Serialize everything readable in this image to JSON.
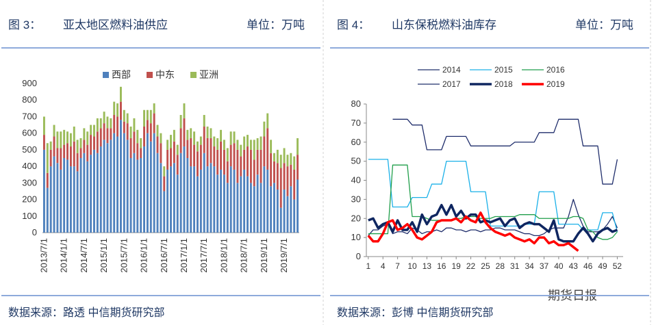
{
  "watermark": "期货日报",
  "chart_data": [
    {
      "type": "bar",
      "stacked": true,
      "figure": "图 3：",
      "title": "亚太地区燃料油供应",
      "unit": "单位：万吨",
      "source": "数据来源：路透  中信期货研究部",
      "categories": [
        "2013/7/1",
        null,
        null,
        null,
        null,
        null,
        "2014/1/1",
        null,
        null,
        null,
        null,
        null,
        "2014/7/1",
        null,
        null,
        null,
        null,
        null,
        "2015/1/1",
        null,
        null,
        null,
        null,
        null,
        "2015/7/1",
        null,
        null,
        null,
        null,
        null,
        "2016/1/1",
        null,
        null,
        null,
        null,
        null,
        "2016/7/1",
        null,
        null,
        null,
        null,
        null,
        "2017/1/1",
        null,
        null,
        null,
        null,
        null,
        "2017/7/1",
        null,
        null,
        null,
        null,
        null,
        "2018/1/1",
        null,
        null,
        null,
        null,
        null,
        "2018/7/1",
        null,
        null,
        null,
        null,
        null,
        "2019/1/1",
        null,
        null,
        null,
        null,
        null,
        "2019/7/1",
        null,
        null,
        null,
        null
      ],
      "series": [
        {
          "name": "西部",
          "color": "#4f81bd",
          "values": [
            500,
            270,
            400,
            460,
            420,
            380,
            450,
            440,
            400,
            400,
            370,
            450,
            480,
            430,
            470,
            500,
            480,
            520,
            560,
            540,
            560,
            600,
            580,
            680,
            600,
            560,
            450,
            480,
            440,
            450,
            520,
            600,
            550,
            600,
            480,
            420,
            250,
            380,
            400,
            420,
            350,
            480,
            520,
            450,
            400,
            400,
            340,
            380,
            480,
            400,
            420,
            400,
            350,
            380,
            350,
            300,
            400,
            380,
            300,
            340,
            380,
            340,
            300,
            280,
            350,
            300,
            400,
            380,
            280,
            300,
            260,
            150,
            260,
            220,
            280,
            200,
            320
          ]
        },
        {
          "name": "中东",
          "color": "#c0504d",
          "values": [
            90,
            90,
            100,
            120,
            90,
            130,
            80,
            100,
            120,
            150,
            110,
            60,
            80,
            100,
            120,
            80,
            130,
            110,
            100,
            90,
            70,
            110,
            120,
            110,
            70,
            100,
            120,
            130,
            100,
            60,
            120,
            80,
            110,
            120,
            100,
            120,
            90,
            120,
            110,
            130,
            120,
            150,
            170,
            110,
            170,
            130,
            150,
            150,
            160,
            170,
            150,
            120,
            150,
            170,
            150,
            130,
            130,
            160,
            200,
            120,
            120,
            180,
            200,
            160,
            150,
            200,
            180,
            250,
            200,
            130,
            160,
            240,
            160,
            180,
            130,
            180,
            150
          ]
        },
        {
          "name": "亚洲",
          "color": "#9bbb59",
          "values": [
            110,
            180,
            50,
            70,
            100,
            100,
            90,
            70,
            80,
            90,
            80,
            60,
            70,
            80,
            60,
            70,
            80,
            60,
            70,
            70,
            60,
            80,
            80,
            90,
            70,
            60,
            70,
            80,
            80,
            60,
            100,
            60,
            80,
            60,
            70,
            60,
            60,
            60,
            80,
            70,
            60,
            80,
            90,
            60,
            60,
            80,
            60,
            50,
            70,
            70,
            60,
            60,
            70,
            70,
            60,
            80,
            80,
            70,
            60,
            70,
            80,
            70,
            60,
            120,
            70,
            80,
            90,
            90,
            80,
            50,
            80,
            80,
            90,
            70,
            70,
            80,
            100
          ]
        }
      ],
      "ylim": [
        0,
        900
      ],
      "yticks": [
        0,
        100,
        200,
        300,
        400,
        500,
        600,
        700,
        800,
        900
      ]
    },
    {
      "type": "line",
      "figure": "图 4：",
      "title": "山东保税燃料油库存",
      "unit": "单位：万吨",
      "source": "数据来源：彭博  中信期货研究部",
      "x": [
        1,
        2,
        3,
        4,
        5,
        6,
        7,
        8,
        9,
        10,
        11,
        12,
        13,
        14,
        15,
        16,
        17,
        18,
        19,
        20,
        21,
        22,
        23,
        24,
        25,
        26,
        27,
        28,
        29,
        30,
        31,
        32,
        33,
        34,
        35,
        36,
        37,
        38,
        39,
        40,
        41,
        42,
        43,
        44,
        45,
        46,
        47,
        48,
        49,
        50,
        51,
        52
      ],
      "series": [
        {
          "name": "2014",
          "color": "#1f2d6b",
          "width": 1.3,
          "values": [
            11,
            14,
            14,
            16,
            17,
            12,
            13,
            13,
            12,
            15,
            14,
            12,
            13,
            13,
            14,
            13,
            15,
            15,
            14,
            14,
            13,
            14,
            14,
            13,
            14,
            14,
            15,
            15,
            14,
            14,
            14,
            13,
            12,
            12,
            11,
            11,
            12,
            14,
            15,
            15,
            15,
            21,
            30,
            22,
            16,
            13,
            13,
            13,
            14,
            17,
            21,
            15
          ]
        },
        {
          "name": "2015",
          "color": "#1ab0e8",
          "width": 1.3,
          "values": [
            51,
            51,
            51,
            51,
            51,
            26,
            26,
            26,
            26,
            31,
            31,
            31,
            31,
            38,
            38,
            38,
            50,
            50,
            50,
            50,
            50,
            34,
            34,
            34,
            34,
            16,
            16,
            16,
            16,
            16,
            16,
            16,
            17,
            17,
            17,
            34,
            34,
            34,
            34,
            17,
            17,
            17,
            17,
            17,
            14,
            14,
            14,
            14,
            23,
            23,
            23,
            13
          ]
        },
        {
          "name": "2016",
          "color": "#1f9e4a",
          "width": 1.3,
          "values": [
            12,
            12,
            12,
            12,
            12,
            48,
            48,
            48,
            48,
            21,
            21,
            21,
            20,
            19,
            19,
            19,
            19,
            19,
            20,
            20,
            21,
            21,
            21,
            20,
            20,
            20,
            21,
            21,
            21,
            21,
            21,
            22,
            22,
            22,
            22,
            20,
            20,
            20,
            20,
            20,
            20,
            20,
            21,
            21,
            20,
            14,
            13,
            10,
            9,
            9,
            10,
            13
          ]
        },
        {
          "name": "2017",
          "color": "#1f2d6b",
          "width": 1.3,
          "values": [
            null,
            null,
            null,
            null,
            null,
            72,
            72,
            72,
            72,
            69,
            69,
            69,
            56,
            56,
            56,
            56,
            63,
            63,
            63,
            63,
            63,
            58,
            58,
            58,
            58,
            58,
            58,
            58,
            58,
            58,
            60,
            60,
            60,
            60,
            60,
            65,
            65,
            65,
            65,
            72,
            72,
            72,
            72,
            72,
            58,
            58,
            58,
            58,
            38,
            38,
            38,
            51
          ]
        },
        {
          "name": "2018",
          "color": "#0f2660",
          "width": 3.5,
          "values": [
            19,
            20,
            15,
            17,
            18,
            13,
            19,
            14,
            14,
            18,
            13,
            22,
            17,
            21,
            22,
            27,
            22,
            27,
            21,
            24,
            20,
            22,
            22,
            18,
            19,
            18,
            19,
            20,
            16,
            19,
            20,
            15,
            17,
            18,
            17,
            17,
            15,
            13,
            19,
            9,
            8,
            8,
            8,
            12,
            15,
            12,
            8,
            12,
            14,
            15,
            13,
            14
          ]
        },
        {
          "name": "2019",
          "color": "#ff0000",
          "width": 3.5,
          "values": [
            11,
            8,
            8,
            12,
            18,
            19,
            14,
            15,
            17,
            14,
            10,
            9,
            11,
            13,
            18,
            19,
            19,
            19,
            20,
            18,
            21,
            19,
            18,
            23,
            18,
            15,
            13,
            12,
            11,
            12,
            10,
            9,
            8,
            9,
            7,
            10,
            10,
            7,
            8,
            6,
            6,
            7,
            5,
            3,
            null,
            null,
            null,
            null,
            null,
            null,
            null,
            null
          ]
        }
      ],
      "xlim": [
        0.6,
        53.2
      ],
      "xticks": [
        1,
        4,
        7,
        10,
        13,
        16,
        19,
        22,
        25,
        28,
        31,
        34,
        37,
        40,
        43,
        46,
        49,
        52
      ],
      "ylim": [
        0,
        80
      ],
      "yticks": [
        0,
        10,
        20,
        30,
        40,
        50,
        60,
        70,
        80
      ]
    }
  ]
}
